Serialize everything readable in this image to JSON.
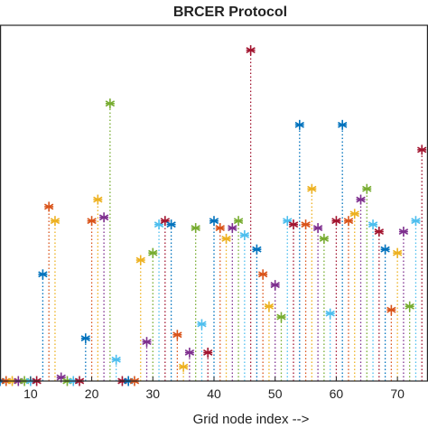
{
  "chart_data": {
    "type": "stem",
    "title": "BRCER Protocol",
    "xlabel": "Grid node index -->",
    "ylabel": "",
    "xlim": [
      5,
      75
    ],
    "ylim": [
      0,
      100
    ],
    "x_ticks": [
      10,
      20,
      30,
      40,
      50,
      60,
      70
    ],
    "grid": false,
    "marker": "asterisk",
    "line_style": "dotted",
    "colors": [
      "#0072BD",
      "#D95319",
      "#EDB120",
      "#7E2F8E",
      "#77AC30",
      "#4DBEEE",
      "#A2142F"
    ],
    "points": [
      {
        "x": 5,
        "y": 0
      },
      {
        "x": 6,
        "y": 0
      },
      {
        "x": 7,
        "y": 0
      },
      {
        "x": 8,
        "y": 0
      },
      {
        "x": 9,
        "y": 0
      },
      {
        "x": 10,
        "y": 0
      },
      {
        "x": 11,
        "y": 0
      },
      {
        "x": 12,
        "y": 30
      },
      {
        "x": 13,
        "y": 49
      },
      {
        "x": 14,
        "y": 45
      },
      {
        "x": 15,
        "y": 1
      },
      {
        "x": 16,
        "y": 0
      },
      {
        "x": 17,
        "y": 0
      },
      {
        "x": 18,
        "y": 0
      },
      {
        "x": 19,
        "y": 12
      },
      {
        "x": 20,
        "y": 45
      },
      {
        "x": 21,
        "y": 51
      },
      {
        "x": 22,
        "y": 46
      },
      {
        "x": 23,
        "y": 78
      },
      {
        "x": 24,
        "y": 6
      },
      {
        "x": 25,
        "y": 0
      },
      {
        "x": 26,
        "y": 0
      },
      {
        "x": 27,
        "y": 0
      },
      {
        "x": 28,
        "y": 34
      },
      {
        "x": 29,
        "y": 11
      },
      {
        "x": 30,
        "y": 36
      },
      {
        "x": 31,
        "y": 44
      },
      {
        "x": 32,
        "y": 45
      },
      {
        "x": 33,
        "y": 44
      },
      {
        "x": 34,
        "y": 13
      },
      {
        "x": 35,
        "y": 4
      },
      {
        "x": 36,
        "y": 8
      },
      {
        "x": 37,
        "y": 43
      },
      {
        "x": 38,
        "y": 16
      },
      {
        "x": 39,
        "y": 8
      },
      {
        "x": 40,
        "y": 45
      },
      {
        "x": 41,
        "y": 43
      },
      {
        "x": 42,
        "y": 40
      },
      {
        "x": 43,
        "y": 43
      },
      {
        "x": 44,
        "y": 45
      },
      {
        "x": 45,
        "y": 41
      },
      {
        "x": 46,
        "y": 93
      },
      {
        "x": 47,
        "y": 37
      },
      {
        "x": 48,
        "y": 30
      },
      {
        "x": 49,
        "y": 21
      },
      {
        "x": 50,
        "y": 27
      },
      {
        "x": 51,
        "y": 18
      },
      {
        "x": 52,
        "y": 45
      },
      {
        "x": 53,
        "y": 44
      },
      {
        "x": 54,
        "y": 72
      },
      {
        "x": 55,
        "y": 44
      },
      {
        "x": 56,
        "y": 54
      },
      {
        "x": 57,
        "y": 43
      },
      {
        "x": 58,
        "y": 40
      },
      {
        "x": 59,
        "y": 19
      },
      {
        "x": 60,
        "y": 45
      },
      {
        "x": 61,
        "y": 72
      },
      {
        "x": 62,
        "y": 45
      },
      {
        "x": 63,
        "y": 47
      },
      {
        "x": 64,
        "y": 51
      },
      {
        "x": 65,
        "y": 54
      },
      {
        "x": 66,
        "y": 44
      },
      {
        "x": 67,
        "y": 42
      },
      {
        "x": 68,
        "y": 37
      },
      {
        "x": 69,
        "y": 20
      },
      {
        "x": 70,
        "y": 36
      },
      {
        "x": 71,
        "y": 42
      },
      {
        "x": 72,
        "y": 21
      },
      {
        "x": 73,
        "y": 45
      },
      {
        "x": 74,
        "y": 65
      }
    ]
  }
}
